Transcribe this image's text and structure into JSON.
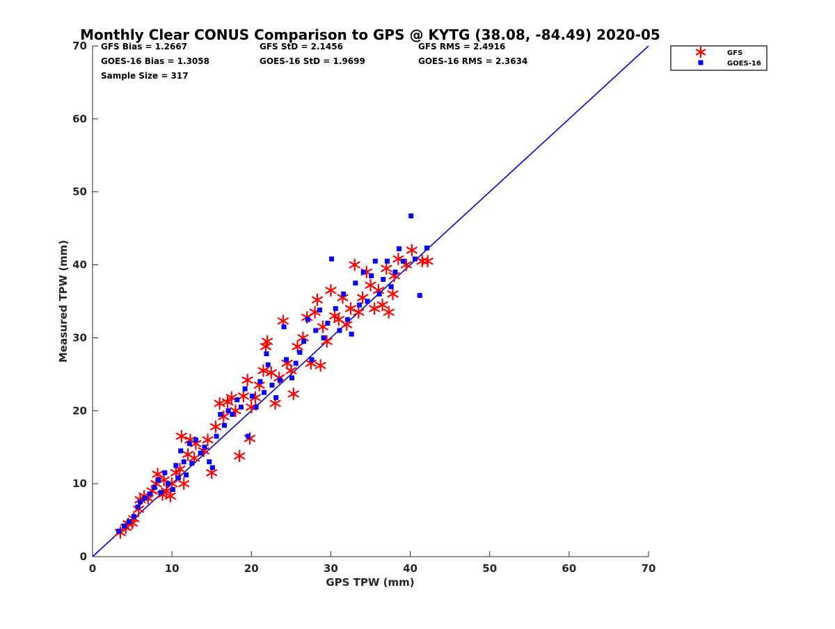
{
  "chart_data": {
    "type": "scatter",
    "title": "Monthly Clear CONUS Comparison to GPS @ KYTG (38.08, -84.49) 2020-05",
    "xlabel": "GPS TPW (mm)",
    "ylabel": "Measured TPW (mm)",
    "xlim": [
      0,
      70
    ],
    "ylim": [
      0,
      70
    ],
    "xticks": [
      0,
      10,
      20,
      30,
      40,
      50,
      60,
      70
    ],
    "yticks": [
      0,
      10,
      20,
      30,
      40,
      50,
      60,
      70
    ],
    "grid": false,
    "legend_position": "top-right outside",
    "stats": [
      [
        "GFS Bias = 1.2667",
        "GFS StD = 2.1456",
        "GFS RMS = 2.4916"
      ],
      [
        "GOES-16 Bias = 1.3058",
        "GOES-16 StD = 1.9699",
        "GOES-16 RMS = 2.3634"
      ],
      [
        "Sample Size = 317"
      ]
    ],
    "reference_line": {
      "x": [
        0,
        70
      ],
      "y": [
        0,
        70
      ],
      "color": "#0000cc"
    },
    "series": [
      {
        "name": "GFS",
        "marker": "asterisk",
        "color": "#ff0000",
        "points": [
          [
            3.5,
            3.3
          ],
          [
            4.2,
            4.0
          ],
          [
            4.5,
            4.5
          ],
          [
            5.0,
            4.6
          ],
          [
            5.2,
            5.2
          ],
          [
            5.8,
            6.5
          ],
          [
            6.0,
            7.8
          ],
          [
            6.5,
            8.3
          ],
          [
            7.0,
            8.0
          ],
          [
            7.5,
            9.0
          ],
          [
            8.0,
            10.0
          ],
          [
            8.2,
            11.3
          ],
          [
            8.8,
            8.5
          ],
          [
            9.0,
            10.5
          ],
          [
            9.3,
            9.0
          ],
          [
            9.8,
            8.3
          ],
          [
            10.0,
            10.0
          ],
          [
            10.5,
            11.5
          ],
          [
            11.0,
            12.0
          ],
          [
            11.2,
            16.5
          ],
          [
            11.5,
            10.0
          ],
          [
            12.0,
            14.0
          ],
          [
            12.3,
            16.0
          ],
          [
            12.8,
            13.5
          ],
          [
            13.0,
            15.5
          ],
          [
            14.0,
            14.5
          ],
          [
            14.5,
            16.0
          ],
          [
            15.0,
            11.5
          ],
          [
            15.5,
            17.8
          ],
          [
            16.0,
            21.0
          ],
          [
            16.5,
            19.2
          ],
          [
            17.0,
            21.2
          ],
          [
            17.5,
            21.8
          ],
          [
            18.0,
            20.0
          ],
          [
            18.5,
            13.8
          ],
          [
            19.0,
            22.0
          ],
          [
            19.5,
            24.2
          ],
          [
            19.8,
            16.2
          ],
          [
            20.0,
            20.5
          ],
          [
            20.5,
            21.8
          ],
          [
            21.0,
            23.5
          ],
          [
            21.5,
            25.5
          ],
          [
            21.8,
            28.8
          ],
          [
            22.0,
            29.5
          ],
          [
            22.5,
            25.2
          ],
          [
            23.0,
            21.0
          ],
          [
            23.5,
            24.5
          ],
          [
            24.0,
            32.3
          ],
          [
            24.5,
            26.5
          ],
          [
            25.0,
            25.5
          ],
          [
            25.3,
            22.3
          ],
          [
            25.8,
            28.8
          ],
          [
            26.5,
            30.0
          ],
          [
            27.0,
            32.8
          ],
          [
            27.5,
            26.5
          ],
          [
            28.0,
            33.5
          ],
          [
            28.3,
            35.2
          ],
          [
            28.7,
            26.2
          ],
          [
            29.0,
            31.5
          ],
          [
            29.5,
            29.5
          ],
          [
            30.0,
            36.5
          ],
          [
            30.5,
            33.0
          ],
          [
            31.0,
            32.5
          ],
          [
            31.5,
            35.5
          ],
          [
            32.0,
            31.8
          ],
          [
            32.5,
            34.0
          ],
          [
            33.0,
            40.0
          ],
          [
            33.5,
            33.5
          ],
          [
            34.0,
            35.5
          ],
          [
            34.5,
            39.0
          ],
          [
            35.0,
            37.2
          ],
          [
            35.5,
            34.0
          ],
          [
            36.0,
            36.5
          ],
          [
            36.5,
            34.5
          ],
          [
            37.0,
            39.5
          ],
          [
            37.3,
            33.5
          ],
          [
            37.8,
            36.0
          ],
          [
            38.0,
            38.5
          ],
          [
            38.5,
            40.8
          ],
          [
            39.5,
            40.0
          ],
          [
            40.2,
            42.0
          ],
          [
            41.5,
            40.5
          ],
          [
            42.2,
            40.5
          ]
        ]
      },
      {
        "name": "GOES-16",
        "marker": "square",
        "color": "#0000ff",
        "points": [
          [
            3.3,
            3.5
          ],
          [
            4.0,
            4.2
          ],
          [
            4.6,
            4.8
          ],
          [
            5.2,
            5.5
          ],
          [
            5.7,
            6.8
          ],
          [
            6.0,
            7.5
          ],
          [
            6.6,
            8.0
          ],
          [
            7.2,
            8.6
          ],
          [
            7.8,
            9.5
          ],
          [
            8.3,
            10.5
          ],
          [
            8.6,
            8.8
          ],
          [
            9.1,
            11.5
          ],
          [
            9.5,
            10.0
          ],
          [
            10.1,
            9.2
          ],
          [
            10.5,
            12.5
          ],
          [
            10.8,
            10.8
          ],
          [
            11.1,
            14.5
          ],
          [
            11.5,
            13.0
          ],
          [
            11.8,
            11.2
          ],
          [
            12.2,
            15.5
          ],
          [
            12.5,
            12.8
          ],
          [
            13.0,
            16.0
          ],
          [
            13.6,
            14.2
          ],
          [
            14.1,
            15.0
          ],
          [
            14.7,
            13.0
          ],
          [
            15.1,
            12.2
          ],
          [
            15.6,
            16.5
          ],
          [
            16.1,
            19.5
          ],
          [
            16.6,
            18.0
          ],
          [
            17.1,
            20.0
          ],
          [
            17.6,
            19.5
          ],
          [
            18.2,
            21.5
          ],
          [
            18.7,
            20.5
          ],
          [
            19.2,
            23.0
          ],
          [
            19.6,
            16.5
          ],
          [
            20.1,
            22.0
          ],
          [
            20.6,
            20.5
          ],
          [
            21.1,
            24.0
          ],
          [
            21.6,
            22.5
          ],
          [
            21.9,
            27.8
          ],
          [
            22.1,
            26.3
          ],
          [
            22.6,
            23.5
          ],
          [
            23.1,
            21.8
          ],
          [
            23.6,
            24.2
          ],
          [
            24.1,
            31.5
          ],
          [
            24.4,
            27.0
          ],
          [
            25.1,
            24.5
          ],
          [
            25.6,
            26.5
          ],
          [
            26.1,
            28.0
          ],
          [
            26.6,
            29.5
          ],
          [
            27.1,
            32.5
          ],
          [
            27.6,
            27.0
          ],
          [
            28.1,
            31.0
          ],
          [
            28.6,
            33.8
          ],
          [
            29.1,
            30.0
          ],
          [
            29.6,
            32.0
          ],
          [
            30.1,
            40.8
          ],
          [
            30.6,
            34.0
          ],
          [
            31.1,
            31.0
          ],
          [
            31.6,
            36.0
          ],
          [
            32.1,
            32.5
          ],
          [
            32.6,
            30.5
          ],
          [
            33.1,
            37.5
          ],
          [
            33.6,
            34.5
          ],
          [
            34.1,
            39.0
          ],
          [
            34.6,
            35.0
          ],
          [
            35.1,
            38.5
          ],
          [
            35.6,
            40.5
          ],
          [
            36.1,
            36.0
          ],
          [
            36.6,
            38.0
          ],
          [
            37.1,
            40.5
          ],
          [
            37.6,
            37.0
          ],
          [
            38.1,
            39.0
          ],
          [
            38.6,
            42.2
          ],
          [
            39.1,
            40.5
          ],
          [
            40.1,
            46.7
          ],
          [
            40.6,
            40.8
          ],
          [
            41.2,
            35.8
          ],
          [
            42.1,
            42.3
          ]
        ]
      }
    ]
  }
}
